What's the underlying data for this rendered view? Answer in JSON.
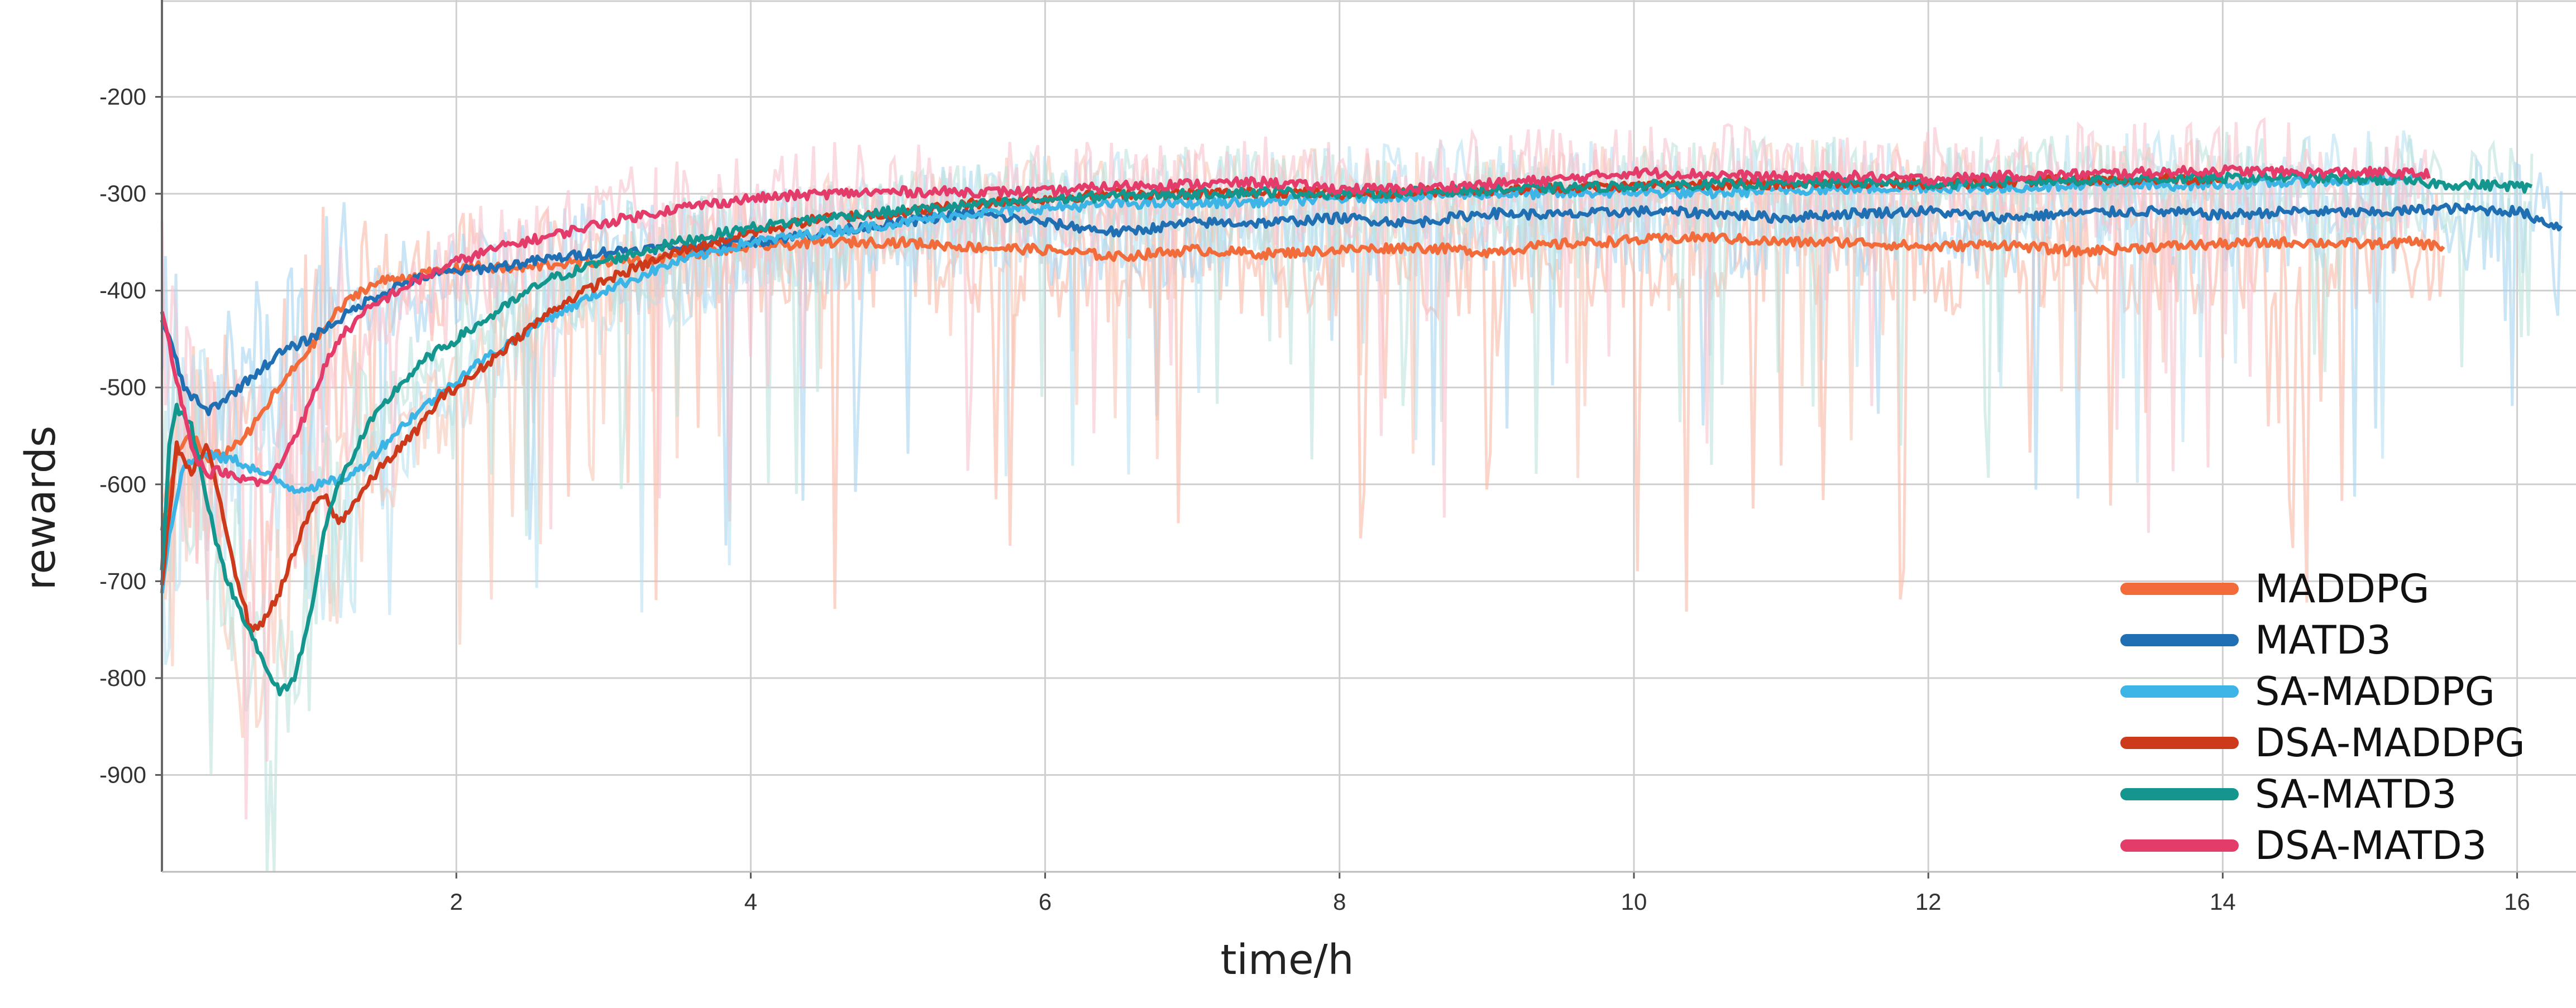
{
  "chart_data": {
    "type": "line",
    "title": "",
    "xlabel": "time/h",
    "ylabel": "rewards",
    "xlim": [
      0,
      16.4
    ],
    "ylim": [
      -1000,
      -100
    ],
    "x_ticks": [
      2,
      4,
      6,
      8,
      10,
      12,
      14,
      16
    ],
    "y_ticks": [
      -900,
      -800,
      -700,
      -600,
      -500,
      -400,
      -300,
      -200
    ],
    "grid": true,
    "legend_position": "bottom-right",
    "series": [
      {
        "name": "MADDPG",
        "color": "#F26B3A",
        "raw_color": "#FAB9A6",
        "x": [
          0,
          0.1,
          0.2,
          0.3,
          0.45,
          0.6,
          0.75,
          0.9,
          1.05,
          1.2,
          1.35,
          1.5,
          1.7,
          1.9,
          2.1,
          2.4,
          2.7,
          3.0,
          3.3,
          3.6,
          4.0,
          4.5,
          5.0,
          5.5,
          6.0,
          6.5,
          7.0,
          7.5,
          8.0,
          8.5,
          9.0,
          9.5,
          10.0,
          10.5,
          11.0,
          11.5,
          12.0,
          12.5,
          13.0,
          13.5,
          14.0,
          14.5,
          15.0,
          15.3,
          15.5
        ],
        "y": [
          -650,
          -570,
          -545,
          -575,
          -565,
          -545,
          -510,
          -480,
          -450,
          -420,
          -400,
          -390,
          -385,
          -380,
          -375,
          -378,
          -372,
          -370,
          -368,
          -362,
          -355,
          -350,
          -350,
          -355,
          -358,
          -365,
          -358,
          -362,
          -358,
          -355,
          -360,
          -352,
          -348,
          -345,
          -350,
          -350,
          -355,
          -352,
          -360,
          -355,
          -352,
          -350,
          -352,
          -350,
          -355
        ],
        "noise_amp": 130
      },
      {
        "name": "MATD3",
        "color": "#1F6FB2",
        "raw_color": "#A7D3EE",
        "x": [
          0,
          0.05,
          0.15,
          0.3,
          0.45,
          0.6,
          0.8,
          1.0,
          1.2,
          1.4,
          1.6,
          1.8,
          2.0,
          2.3,
          2.6,
          3.0,
          3.5,
          4.0,
          4.5,
          5.0,
          5.5,
          6.0,
          6.5,
          7.0,
          7.5,
          8.0,
          8.5,
          9.0,
          9.5,
          10.0,
          10.5,
          11.0,
          11.5,
          12.0,
          12.5,
          13.0,
          13.5,
          14.0,
          14.5,
          15.0,
          15.5,
          16.0,
          16.3
        ],
        "y": [
          -430,
          -450,
          -500,
          -525,
          -510,
          -490,
          -465,
          -450,
          -430,
          -410,
          -395,
          -385,
          -380,
          -375,
          -368,
          -360,
          -355,
          -350,
          -340,
          -330,
          -320,
          -330,
          -340,
          -330,
          -330,
          -325,
          -330,
          -320,
          -322,
          -318,
          -320,
          -325,
          -320,
          -318,
          -325,
          -320,
          -318,
          -322,
          -318,
          -320,
          -315,
          -318,
          -335
        ],
        "noise_amp": 120
      },
      {
        "name": "SA-MADDPG",
        "color": "#3CB4E5",
        "raw_color": "#B8E1F2",
        "x": [
          0,
          0.05,
          0.15,
          0.3,
          0.5,
          0.7,
          0.9,
          1.1,
          1.3,
          1.5,
          1.7,
          1.9,
          2.1,
          2.3,
          2.6,
          3.0,
          3.5,
          4.0,
          4.5,
          5.0,
          5.5,
          6.0,
          6.5,
          7.0,
          7.5,
          8.0,
          8.5,
          9.0,
          9.5,
          10.0,
          10.5,
          11.0,
          11.5,
          12.0,
          12.5,
          13.0,
          13.5,
          14.0,
          14.5,
          15.0,
          15.3
        ],
        "y": [
          -710,
          -650,
          -580,
          -570,
          -575,
          -590,
          -605,
          -600,
          -590,
          -560,
          -530,
          -505,
          -480,
          -460,
          -430,
          -400,
          -370,
          -350,
          -340,
          -330,
          -320,
          -315,
          -310,
          -310,
          -308,
          -305,
          -302,
          -300,
          -300,
          -298,
          -300,
          -296,
          -295,
          -293,
          -295,
          -290,
          -292,
          -290,
          -288,
          -286,
          -285
        ],
        "noise_amp": 120
      },
      {
        "name": "DSA-MADDPG",
        "color": "#CC3A1B",
        "raw_color": "#F7C6B5",
        "x": [
          0,
          0.1,
          0.2,
          0.3,
          0.4,
          0.5,
          0.6,
          0.7,
          0.8,
          0.9,
          1.0,
          1.1,
          1.2,
          1.35,
          1.5,
          1.7,
          1.9,
          2.1,
          2.4,
          2.7,
          3.0,
          3.5,
          4.0,
          4.5,
          5.0,
          5.5,
          6.0,
          6.5,
          7.0,
          7.5,
          8.0,
          8.5,
          9.0,
          9.5,
          10.0,
          10.5,
          11.0,
          11.5,
          12.0,
          12.5,
          13.0,
          13.5,
          14.0
        ],
        "y": [
          -700,
          -560,
          -590,
          -560,
          -620,
          -690,
          -750,
          -740,
          -710,
          -670,
          -630,
          -610,
          -640,
          -610,
          -580,
          -550,
          -510,
          -490,
          -450,
          -415,
          -390,
          -360,
          -340,
          -325,
          -320,
          -310,
          -305,
          -300,
          -300,
          -298,
          -300,
          -298,
          -296,
          -294,
          -292,
          -290,
          -290,
          -288,
          -290,
          -288,
          -286,
          -285,
          -285
        ],
        "noise_amp": 100
      },
      {
        "name": "SA-MATD3",
        "color": "#14968F",
        "raw_color": "#BDE3DE",
        "x": [
          0,
          0.05,
          0.1,
          0.2,
          0.3,
          0.4,
          0.5,
          0.6,
          0.7,
          0.8,
          0.9,
          1.0,
          1.1,
          1.2,
          1.4,
          1.6,
          1.8,
          2.0,
          2.3,
          2.6,
          3.0,
          3.5,
          4.0,
          4.5,
          5.0,
          5.5,
          6.0,
          6.5,
          7.0,
          7.5,
          8.0,
          8.5,
          9.0,
          9.5,
          10.0,
          10.5,
          11.0,
          11.5,
          12.0,
          12.5,
          13.0,
          13.5,
          14.0,
          14.5,
          15.0,
          15.5,
          16.0,
          16.1
        ],
        "y": [
          -690,
          -560,
          -520,
          -540,
          -610,
          -680,
          -720,
          -750,
          -790,
          -815,
          -800,
          -740,
          -650,
          -600,
          -540,
          -500,
          -470,
          -450,
          -420,
          -390,
          -370,
          -350,
          -335,
          -325,
          -318,
          -312,
          -306,
          -302,
          -300,
          -298,
          -300,
          -298,
          -296,
          -294,
          -292,
          -290,
          -290,
          -288,
          -290,
          -288,
          -286,
          -285,
          -284,
          -283,
          -285,
          -290,
          -292,
          -295
        ],
        "noise_amp": 110
      },
      {
        "name": "DSA-MATD3",
        "color": "#E33C6A",
        "raw_color": "#F9C3CF",
        "x": [
          0,
          0.1,
          0.2,
          0.3,
          0.4,
          0.5,
          0.6,
          0.7,
          0.8,
          0.9,
          1.0,
          1.1,
          1.2,
          1.4,
          1.6,
          1.8,
          2.0,
          2.3,
          2.6,
          3.0,
          3.5,
          4.0,
          4.5,
          5.0,
          5.5,
          6.0,
          6.5,
          7.0,
          7.5,
          8.0,
          8.5,
          9.0,
          9.5,
          10.0,
          10.5,
          11.0,
          11.5,
          12.0,
          12.5,
          13.0,
          13.5,
          14.0,
          14.5,
          15.0,
          15.4
        ],
        "y": [
          -420,
          -490,
          -560,
          -590,
          -585,
          -595,
          -595,
          -600,
          -580,
          -550,
          -520,
          -480,
          -450,
          -420,
          -400,
          -385,
          -370,
          -355,
          -345,
          -330,
          -315,
          -305,
          -300,
          -298,
          -298,
          -298,
          -292,
          -290,
          -288,
          -295,
          -295,
          -290,
          -285,
          -278,
          -280,
          -283,
          -282,
          -285,
          -282,
          -280,
          -278,
          -276,
          -278,
          -278,
          -280
        ],
        "noise_amp": 120
      }
    ]
  }
}
